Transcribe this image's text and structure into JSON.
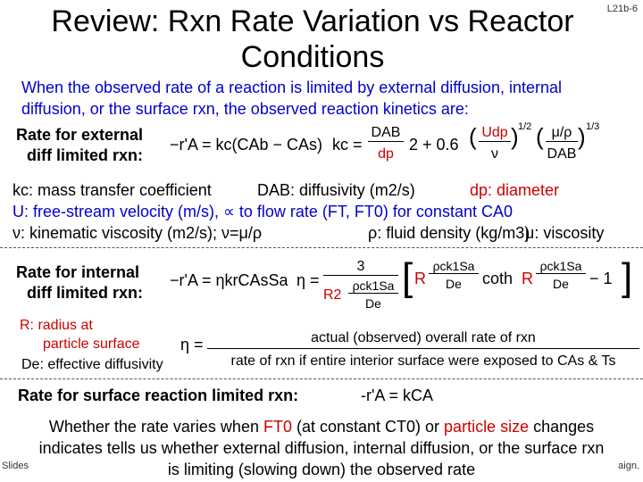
{
  "slide": {
    "title": "Review: Rxn Rate Variation vs Reactor Conditions",
    "number": "L21b-6",
    "intro": "When the observed rate of a reaction is limited by external diffusion, internal diffusion, or the surface rxn, the observed reaction kinetics are:"
  },
  "external": {
    "label_line1": "Rate for external",
    "label_line2": "diff limited rxn:",
    "eq_rate": "−r'A = kc(CAb − CAs)",
    "eq_kc": "kc =",
    "eq_dab": "DAB",
    "eq_dp": "dp",
    "eq_two": "2 + 0.6",
    "eq_udp": "Udp",
    "eq_mu_rho": "μ/ρ",
    "eq_exp12": "1/2",
    "eq_exp13": "1/3",
    "eq_dab2": "DAB"
  },
  "defs": {
    "kc": "kc: mass transfer coefficient",
    "dab": "DAB: diffusivity (m2/s)",
    "dp": "dp: diameter",
    "u_line": "U: free-stream velocity (m/s), ∝ to flow rate (FT, FT0) for constant CA0",
    "nu": "ν: kinematic viscosity (m2/s); ν=μ/ρ",
    "rho": "ρ: fluid density (kg/m3)",
    "mu": "μ: viscosity"
  },
  "internal": {
    "label_line1": "Rate for internal",
    "label_line2": "diff limited rxn:",
    "eq_rate": "−r'A = ηkrCAsSa",
    "eq_eta": "η =",
    "eq_three": "3",
    "eq_r2": "R2",
    "eq_rho_k_s": "ρck1Sa",
    "eq_de": "De",
    "eq_r": "R",
    "eq_coth": "coth",
    "eq_minus1": "− 1",
    "r_def1": "R: radius at",
    "r_def2": "particle surface",
    "de_def": "De: effective diffusivity",
    "eta_eq": "η =",
    "eta_num": "actual (observed) overall rate of rxn",
    "eta_den": "rate of rxn if entire interior surface were exposed to CAs & Ts"
  },
  "surface": {
    "label": "Rate for surface reaction limited rxn:",
    "eq": "-r'A = kCA"
  },
  "conclusion": {
    "text_a": "Whether the rate varies when ",
    "ft0": "FT0",
    "text_b": " (at constant CT0) or ",
    "psize": "particle size",
    "text_c": " changes indicates tells us whether external diffusion, internal diffusion, or the surface rxn is limiting (slowing down) the observed rate"
  },
  "footer": {
    "left": "Slides",
    "right": "aign."
  }
}
